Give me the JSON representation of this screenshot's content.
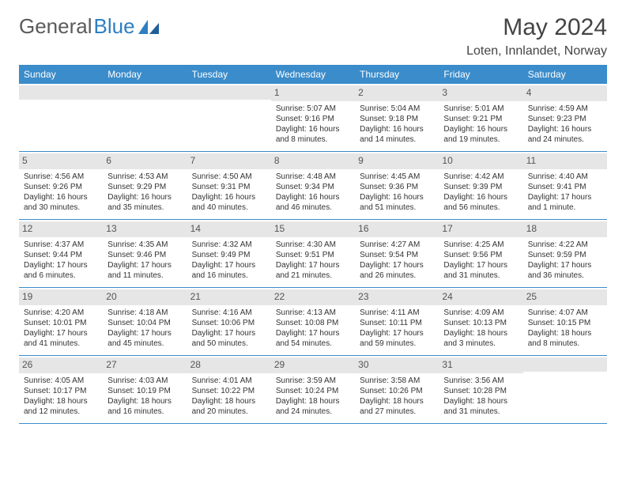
{
  "logo": {
    "text1": "General",
    "text2": "Blue"
  },
  "header": {
    "title": "May 2024",
    "location": "Loten, Innlandet, Norway"
  },
  "colors": {
    "headerBar": "#3b8cca",
    "dayBar": "#e6e6e6",
    "rule": "#3b8cca",
    "bg": "#ffffff"
  },
  "dow": [
    "Sunday",
    "Monday",
    "Tuesday",
    "Wednesday",
    "Thursday",
    "Friday",
    "Saturday"
  ],
  "layout": {
    "cols": 7,
    "rows": 5,
    "leadingBlanks": 3
  },
  "days": [
    {
      "n": "1",
      "sr": "Sunrise: 5:07 AM",
      "ss": "Sunset: 9:16 PM",
      "dl": "Daylight: 16 hours and 8 minutes."
    },
    {
      "n": "2",
      "sr": "Sunrise: 5:04 AM",
      "ss": "Sunset: 9:18 PM",
      "dl": "Daylight: 16 hours and 14 minutes."
    },
    {
      "n": "3",
      "sr": "Sunrise: 5:01 AM",
      "ss": "Sunset: 9:21 PM",
      "dl": "Daylight: 16 hours and 19 minutes."
    },
    {
      "n": "4",
      "sr": "Sunrise: 4:59 AM",
      "ss": "Sunset: 9:23 PM",
      "dl": "Daylight: 16 hours and 24 minutes."
    },
    {
      "n": "5",
      "sr": "Sunrise: 4:56 AM",
      "ss": "Sunset: 9:26 PM",
      "dl": "Daylight: 16 hours and 30 minutes."
    },
    {
      "n": "6",
      "sr": "Sunrise: 4:53 AM",
      "ss": "Sunset: 9:29 PM",
      "dl": "Daylight: 16 hours and 35 minutes."
    },
    {
      "n": "7",
      "sr": "Sunrise: 4:50 AM",
      "ss": "Sunset: 9:31 PM",
      "dl": "Daylight: 16 hours and 40 minutes."
    },
    {
      "n": "8",
      "sr": "Sunrise: 4:48 AM",
      "ss": "Sunset: 9:34 PM",
      "dl": "Daylight: 16 hours and 46 minutes."
    },
    {
      "n": "9",
      "sr": "Sunrise: 4:45 AM",
      "ss": "Sunset: 9:36 PM",
      "dl": "Daylight: 16 hours and 51 minutes."
    },
    {
      "n": "10",
      "sr": "Sunrise: 4:42 AM",
      "ss": "Sunset: 9:39 PM",
      "dl": "Daylight: 16 hours and 56 minutes."
    },
    {
      "n": "11",
      "sr": "Sunrise: 4:40 AM",
      "ss": "Sunset: 9:41 PM",
      "dl": "Daylight: 17 hours and 1 minute."
    },
    {
      "n": "12",
      "sr": "Sunrise: 4:37 AM",
      "ss": "Sunset: 9:44 PM",
      "dl": "Daylight: 17 hours and 6 minutes."
    },
    {
      "n": "13",
      "sr": "Sunrise: 4:35 AM",
      "ss": "Sunset: 9:46 PM",
      "dl": "Daylight: 17 hours and 11 minutes."
    },
    {
      "n": "14",
      "sr": "Sunrise: 4:32 AM",
      "ss": "Sunset: 9:49 PM",
      "dl": "Daylight: 17 hours and 16 minutes."
    },
    {
      "n": "15",
      "sr": "Sunrise: 4:30 AM",
      "ss": "Sunset: 9:51 PM",
      "dl": "Daylight: 17 hours and 21 minutes."
    },
    {
      "n": "16",
      "sr": "Sunrise: 4:27 AM",
      "ss": "Sunset: 9:54 PM",
      "dl": "Daylight: 17 hours and 26 minutes."
    },
    {
      "n": "17",
      "sr": "Sunrise: 4:25 AM",
      "ss": "Sunset: 9:56 PM",
      "dl": "Daylight: 17 hours and 31 minutes."
    },
    {
      "n": "18",
      "sr": "Sunrise: 4:22 AM",
      "ss": "Sunset: 9:59 PM",
      "dl": "Daylight: 17 hours and 36 minutes."
    },
    {
      "n": "19",
      "sr": "Sunrise: 4:20 AM",
      "ss": "Sunset: 10:01 PM",
      "dl": "Daylight: 17 hours and 41 minutes."
    },
    {
      "n": "20",
      "sr": "Sunrise: 4:18 AM",
      "ss": "Sunset: 10:04 PM",
      "dl": "Daylight: 17 hours and 45 minutes."
    },
    {
      "n": "21",
      "sr": "Sunrise: 4:16 AM",
      "ss": "Sunset: 10:06 PM",
      "dl": "Daylight: 17 hours and 50 minutes."
    },
    {
      "n": "22",
      "sr": "Sunrise: 4:13 AM",
      "ss": "Sunset: 10:08 PM",
      "dl": "Daylight: 17 hours and 54 minutes."
    },
    {
      "n": "23",
      "sr": "Sunrise: 4:11 AM",
      "ss": "Sunset: 10:11 PM",
      "dl": "Daylight: 17 hours and 59 minutes."
    },
    {
      "n": "24",
      "sr": "Sunrise: 4:09 AM",
      "ss": "Sunset: 10:13 PM",
      "dl": "Daylight: 18 hours and 3 minutes."
    },
    {
      "n": "25",
      "sr": "Sunrise: 4:07 AM",
      "ss": "Sunset: 10:15 PM",
      "dl": "Daylight: 18 hours and 8 minutes."
    },
    {
      "n": "26",
      "sr": "Sunrise: 4:05 AM",
      "ss": "Sunset: 10:17 PM",
      "dl": "Daylight: 18 hours and 12 minutes."
    },
    {
      "n": "27",
      "sr": "Sunrise: 4:03 AM",
      "ss": "Sunset: 10:19 PM",
      "dl": "Daylight: 18 hours and 16 minutes."
    },
    {
      "n": "28",
      "sr": "Sunrise: 4:01 AM",
      "ss": "Sunset: 10:22 PM",
      "dl": "Daylight: 18 hours and 20 minutes."
    },
    {
      "n": "29",
      "sr": "Sunrise: 3:59 AM",
      "ss": "Sunset: 10:24 PM",
      "dl": "Daylight: 18 hours and 24 minutes."
    },
    {
      "n": "30",
      "sr": "Sunrise: 3:58 AM",
      "ss": "Sunset: 10:26 PM",
      "dl": "Daylight: 18 hours and 27 minutes."
    },
    {
      "n": "31",
      "sr": "Sunrise: 3:56 AM",
      "ss": "Sunset: 10:28 PM",
      "dl": "Daylight: 18 hours and 31 minutes."
    }
  ]
}
